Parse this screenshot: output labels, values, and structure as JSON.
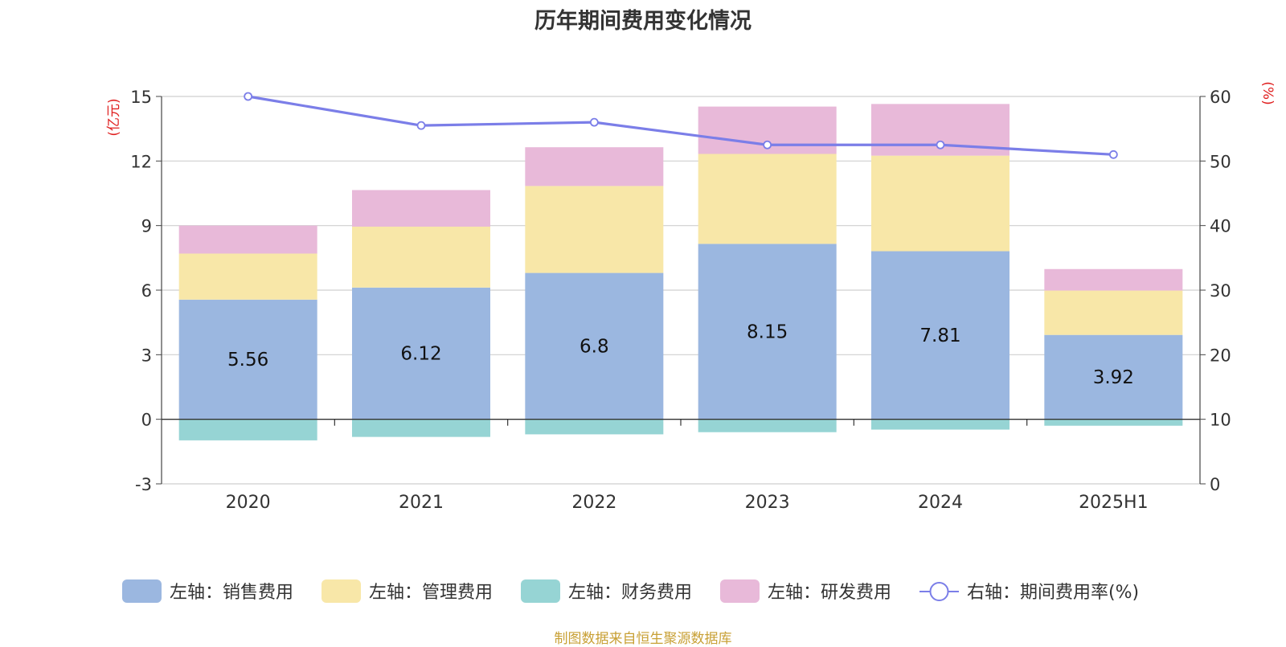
{
  "chart_data": {
    "type": "bar",
    "title": "历年期间费用变化情况",
    "categories": [
      "2020",
      "2021",
      "2022",
      "2023",
      "2024",
      "2025H1"
    ],
    "series": [
      {
        "name": "左轴：销售费用",
        "type": "bar",
        "axis": "left",
        "color": "#9bb7e0",
        "values": [
          5.56,
          6.12,
          6.8,
          8.15,
          7.81,
          3.92
        ],
        "labels": [
          "5.56",
          "6.12",
          "6.8",
          "8.15",
          "7.81",
          "3.92"
        ]
      },
      {
        "name": "左轴：管理费用",
        "type": "bar",
        "axis": "left",
        "color": "#f8e7a8",
        "values": [
          2.14,
          2.83,
          4.04,
          4.18,
          4.44,
          2.06
        ]
      },
      {
        "name": "左轴：财务费用",
        "type": "bar",
        "axis": "left",
        "color": "#96d4d4",
        "values": [
          -0.98,
          -0.82,
          -0.7,
          -0.6,
          -0.48,
          -0.3
        ]
      },
      {
        "name": "左轴：研发费用",
        "type": "bar",
        "axis": "left",
        "color": "#e8b9d9",
        "values": [
          1.3,
          1.7,
          1.8,
          2.2,
          2.4,
          1.0
        ]
      },
      {
        "name": "右轴：期间费用率(%)",
        "type": "line",
        "axis": "right",
        "color": "#7b7ee8",
        "values": [
          60.0,
          55.5,
          56.0,
          52.5,
          52.5,
          51.0
        ]
      }
    ],
    "left_axis": {
      "label": "(亿元)",
      "min": -3,
      "max": 15,
      "ticks": [
        -3,
        0,
        3,
        6,
        9,
        12,
        15
      ]
    },
    "right_axis": {
      "label": "(%)",
      "min": 0,
      "max": 60,
      "ticks": [
        0,
        10,
        20,
        30,
        40,
        50,
        60
      ]
    },
    "grid": true,
    "legend_position": "bottom"
  },
  "source_text": "制图数据来自恒生聚源数据库"
}
